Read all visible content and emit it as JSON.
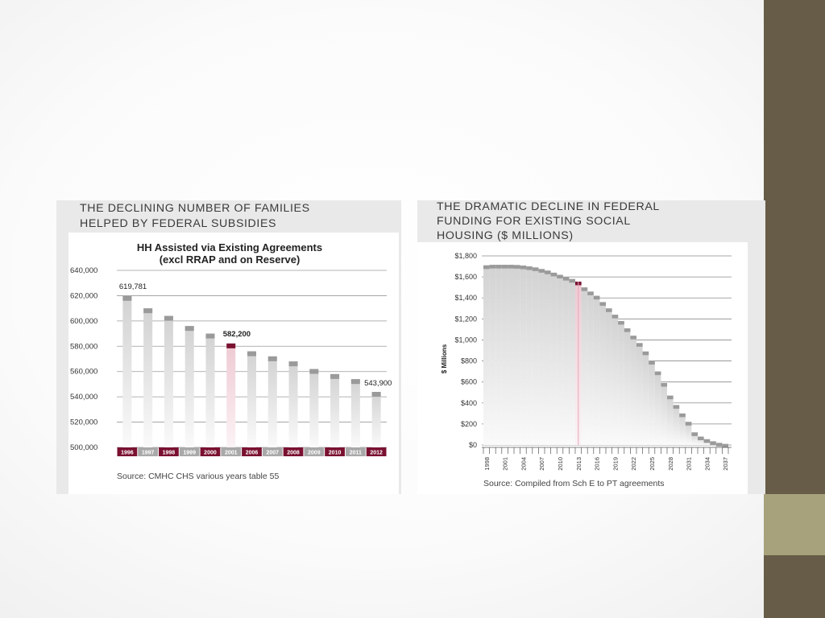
{
  "colors": {
    "sidebar_dark": "#675c47",
    "sidebar_light": "#a8a27c",
    "highlight": "#7a1131",
    "bar_cap": "#9a9a9a",
    "bar_body": "#dcdcdc"
  },
  "left_panel": {
    "title_line1": "THE DECLINING NUMBER OF FAMILIES",
    "title_line2": "HELPED BY FEDERAL SUBSIDIES"
  },
  "right_panel": {
    "title_line1": "THE DRAMATIC DECLINE IN FEDERAL",
    "title_line2": "FUNDING FOR EXISTING SOCIAL",
    "title_line3": "HOUSING ($ MILLIONS)"
  },
  "chart_data": [
    {
      "type": "bar",
      "title_line1": "HH Assisted via Existing Agreements",
      "title_line2": "(excl RRAP and on Reserve)",
      "categories": [
        "1996",
        "1997",
        "1998",
        "1999",
        "2000",
        "2001",
        "2006",
        "2007",
        "2008",
        "2009",
        "2010",
        "2011",
        "2012"
      ],
      "values": [
        619781,
        610000,
        604000,
        596000,
        590000,
        582200,
        576000,
        572000,
        568000,
        562000,
        558000,
        554000,
        543900
      ],
      "category_label_styles": [
        "dark",
        "light",
        "dark",
        "light",
        "dark",
        "light",
        "dark",
        "light",
        "dark",
        "light",
        "dark",
        "light",
        "dark"
      ],
      "highlight_index": 5,
      "y_ticks": [
        "640,000",
        "620,000",
        "600,000",
        "580,000",
        "560,000",
        "540,000",
        "520,000",
        "500,000"
      ],
      "ylim": [
        500000,
        640000
      ],
      "grid": true,
      "annotations": [
        {
          "index": 0,
          "text": "619,781"
        },
        {
          "index": 5,
          "text": "582,200"
        },
        {
          "index": 12,
          "text": "543,900"
        }
      ],
      "source": "Source: CMHC CHS various years table 55"
    },
    {
      "type": "bar",
      "ylabel": "$ Millions",
      "y_ticks": [
        "$1,800",
        "$1,600",
        "$1,400",
        "$1,200",
        "$1,000",
        "$800",
        "$600",
        "$400",
        "$200",
        "$0"
      ],
      "ylim": [
        0,
        1800
      ],
      "grid": true,
      "x_start_year": 1998,
      "x_tick_labels": [
        "1998",
        "2001",
        "2004",
        "2007",
        "2010",
        "2013",
        "2016",
        "2019",
        "2022",
        "2025",
        "2028",
        "2031",
        "2034",
        "2037"
      ],
      "highlight_year": 2013,
      "values": [
        1710,
        1715,
        1715,
        1715,
        1715,
        1713,
        1708,
        1700,
        1690,
        1675,
        1660,
        1640,
        1620,
        1600,
        1580,
        1555,
        1500,
        1460,
        1420,
        1360,
        1300,
        1240,
        1180,
        1110,
        1040,
        970,
        890,
        800,
        700,
        590,
        470,
        380,
        300,
        220,
        120,
        80,
        55,
        35,
        20,
        10
      ],
      "source": "Source: Compiled from Sch E to PT agreements"
    }
  ]
}
